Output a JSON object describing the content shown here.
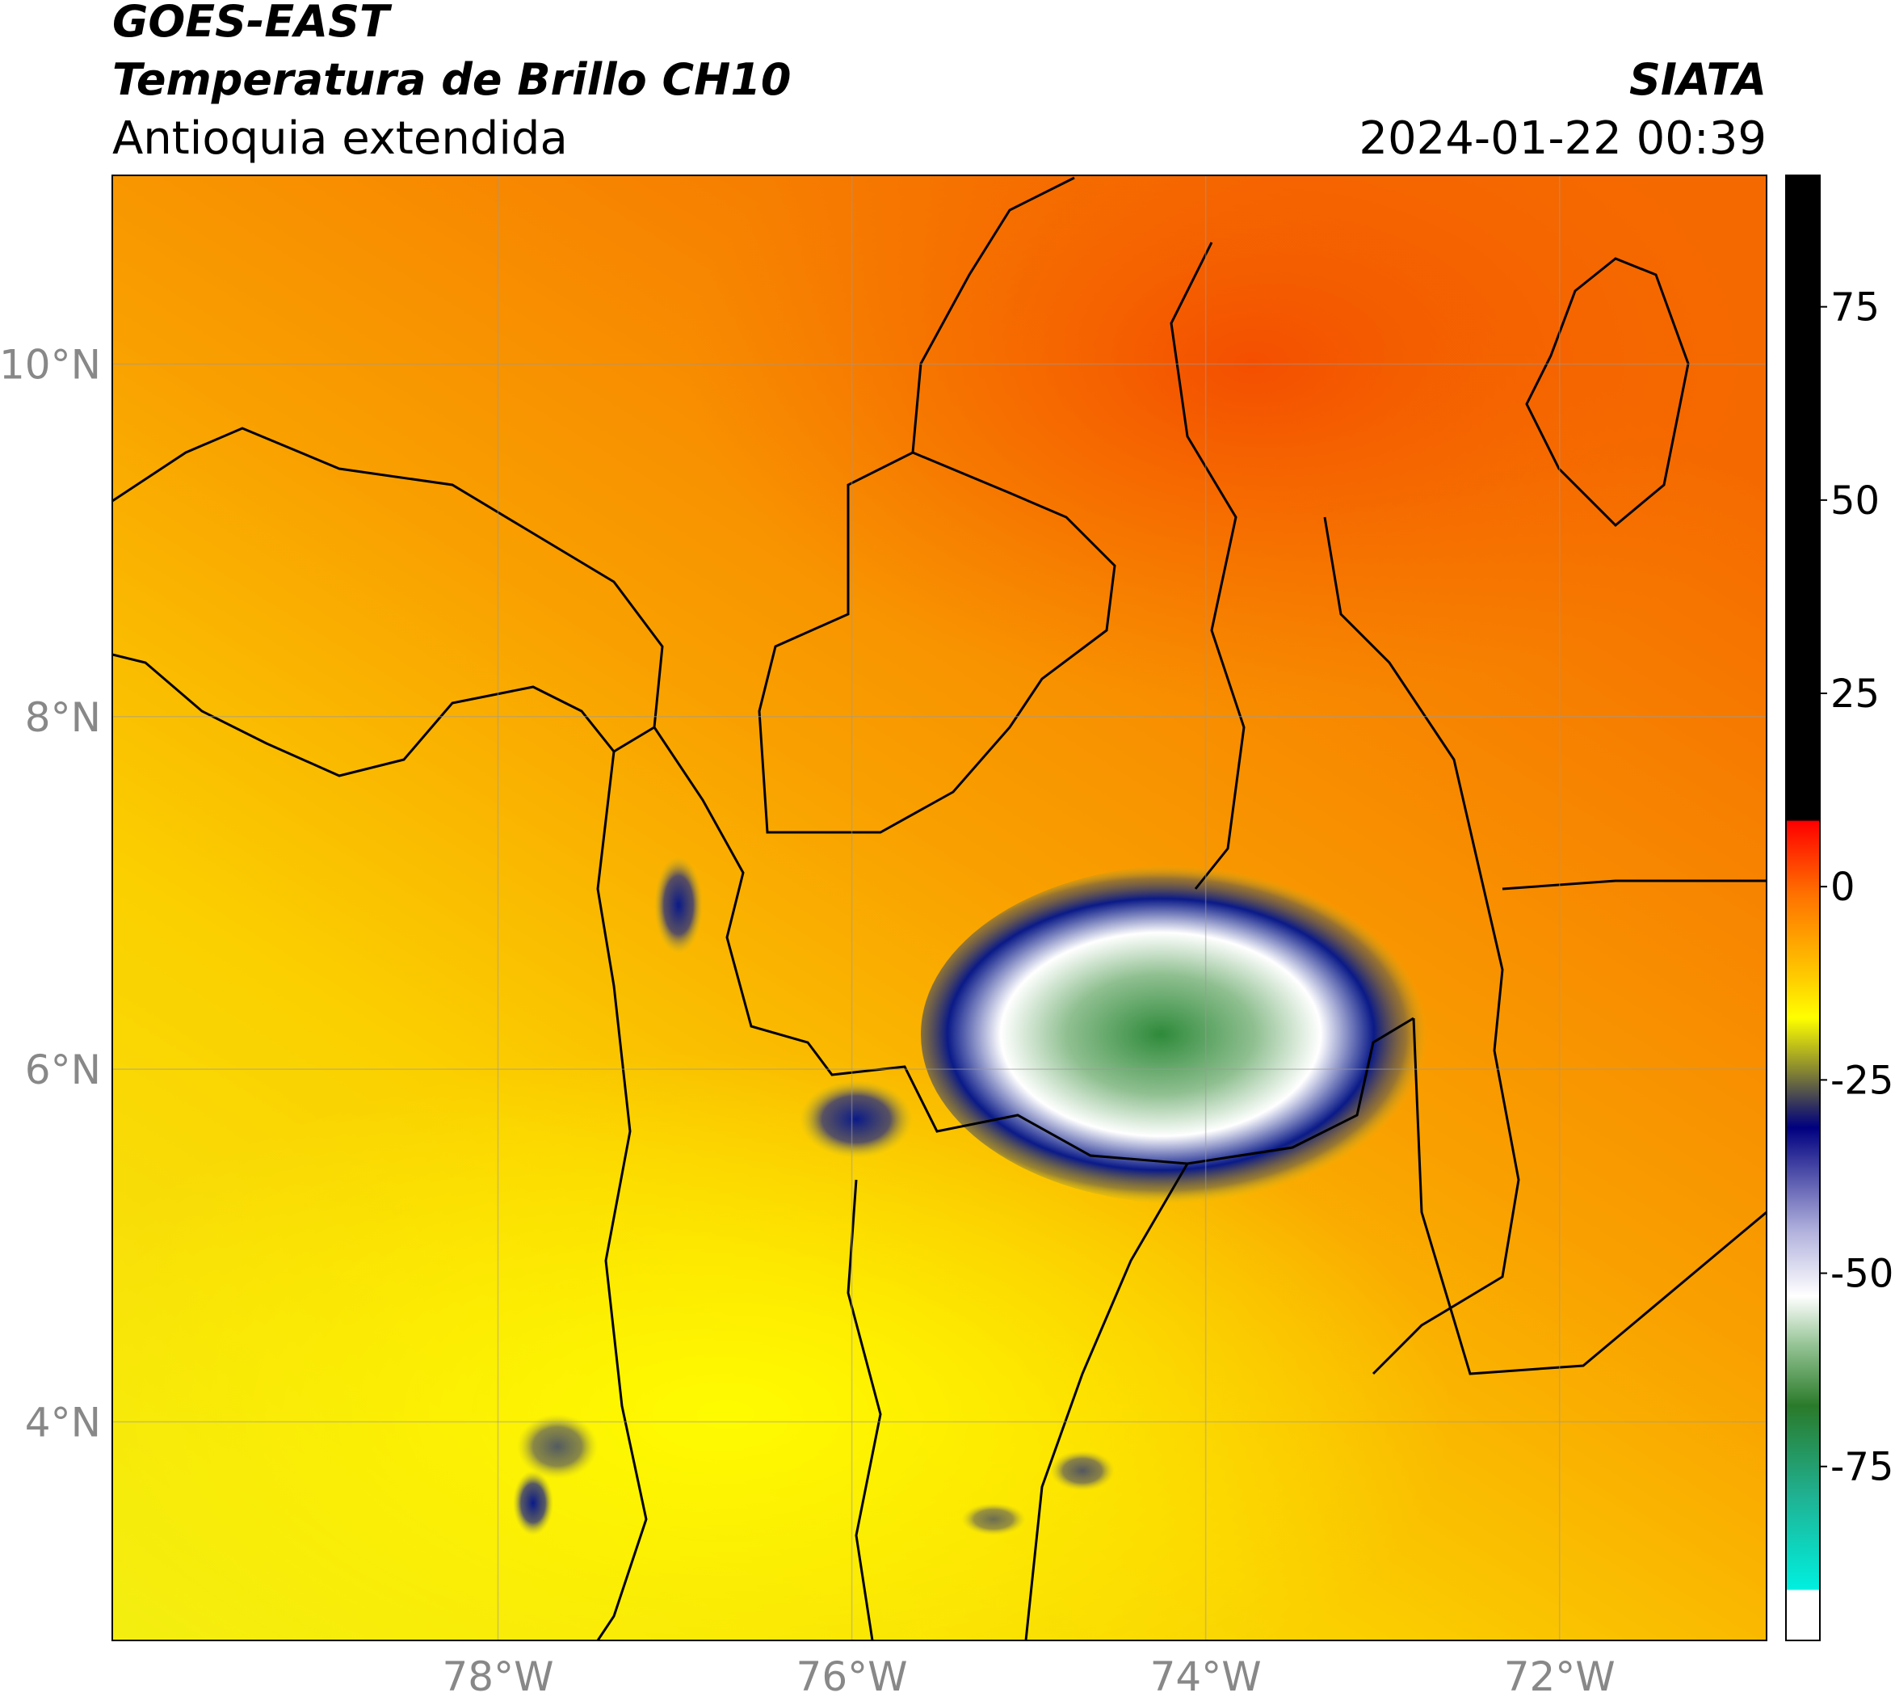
{
  "header": {
    "title1": "GOES-EAST",
    "title2": "Temperatura de Brillo CH10",
    "subtitle": "Antioquia extendida",
    "source": "SIATA",
    "datetime": "2024-01-22 00:39"
  },
  "map": {
    "xlim": [
      -80.18,
      -70.83
    ],
    "ylim": [
      2.76,
      11.07
    ],
    "xticks": [
      {
        "value": -78,
        "label": "78°W"
      },
      {
        "value": -76,
        "label": "76°W"
      },
      {
        "value": -74,
        "label": "74°W"
      },
      {
        "value": -72,
        "label": "72°W"
      }
    ],
    "yticks": [
      {
        "value": 4,
        "label": "4°N"
      },
      {
        "value": 6,
        "label": "6°N"
      },
      {
        "value": 8,
        "label": "8°N"
      },
      {
        "value": 10,
        "label": "10°N"
      }
    ],
    "grid": true
  },
  "colorbar": {
    "lim": [
      -97.5,
      92
    ],
    "ticks": [
      -75,
      -50,
      -25,
      0,
      25,
      50,
      75
    ]
  }
}
